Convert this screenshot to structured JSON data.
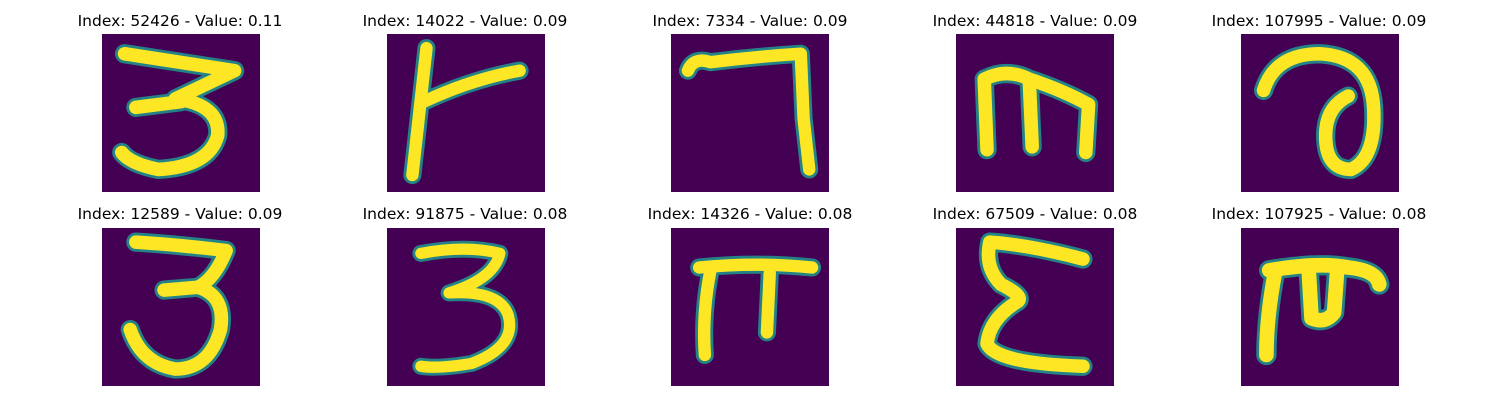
{
  "colors": {
    "background": "#440154",
    "stroke": "#fde725",
    "edge": "#21918c"
  },
  "panels": [
    {
      "title": "Index: 52426 - Value: 0.11",
      "glyph": "glyph-3-a"
    },
    {
      "title": "Index: 14022 - Value: 0.09",
      "glyph": "glyph-r"
    },
    {
      "title": "Index: 7334 - Value: 0.09",
      "glyph": "glyph-7"
    },
    {
      "title": "Index: 44818 - Value: 0.09",
      "glyph": "glyph-m"
    },
    {
      "title": "Index: 107995 - Value: 0.09",
      "glyph": "glyph-a"
    },
    {
      "title": "Index: 12589 - Value: 0.09",
      "glyph": "glyph-3-b"
    },
    {
      "title": "Index: 91875 - Value: 0.08",
      "glyph": "glyph-3-c"
    },
    {
      "title": "Index: 14326 - Value: 0.08",
      "glyph": "glyph-pi"
    },
    {
      "title": "Index: 67509 - Value: 0.08",
      "glyph": "glyph-e"
    },
    {
      "title": "Index: 107925 - Value: 0.08",
      "glyph": "glyph-f"
    }
  ]
}
